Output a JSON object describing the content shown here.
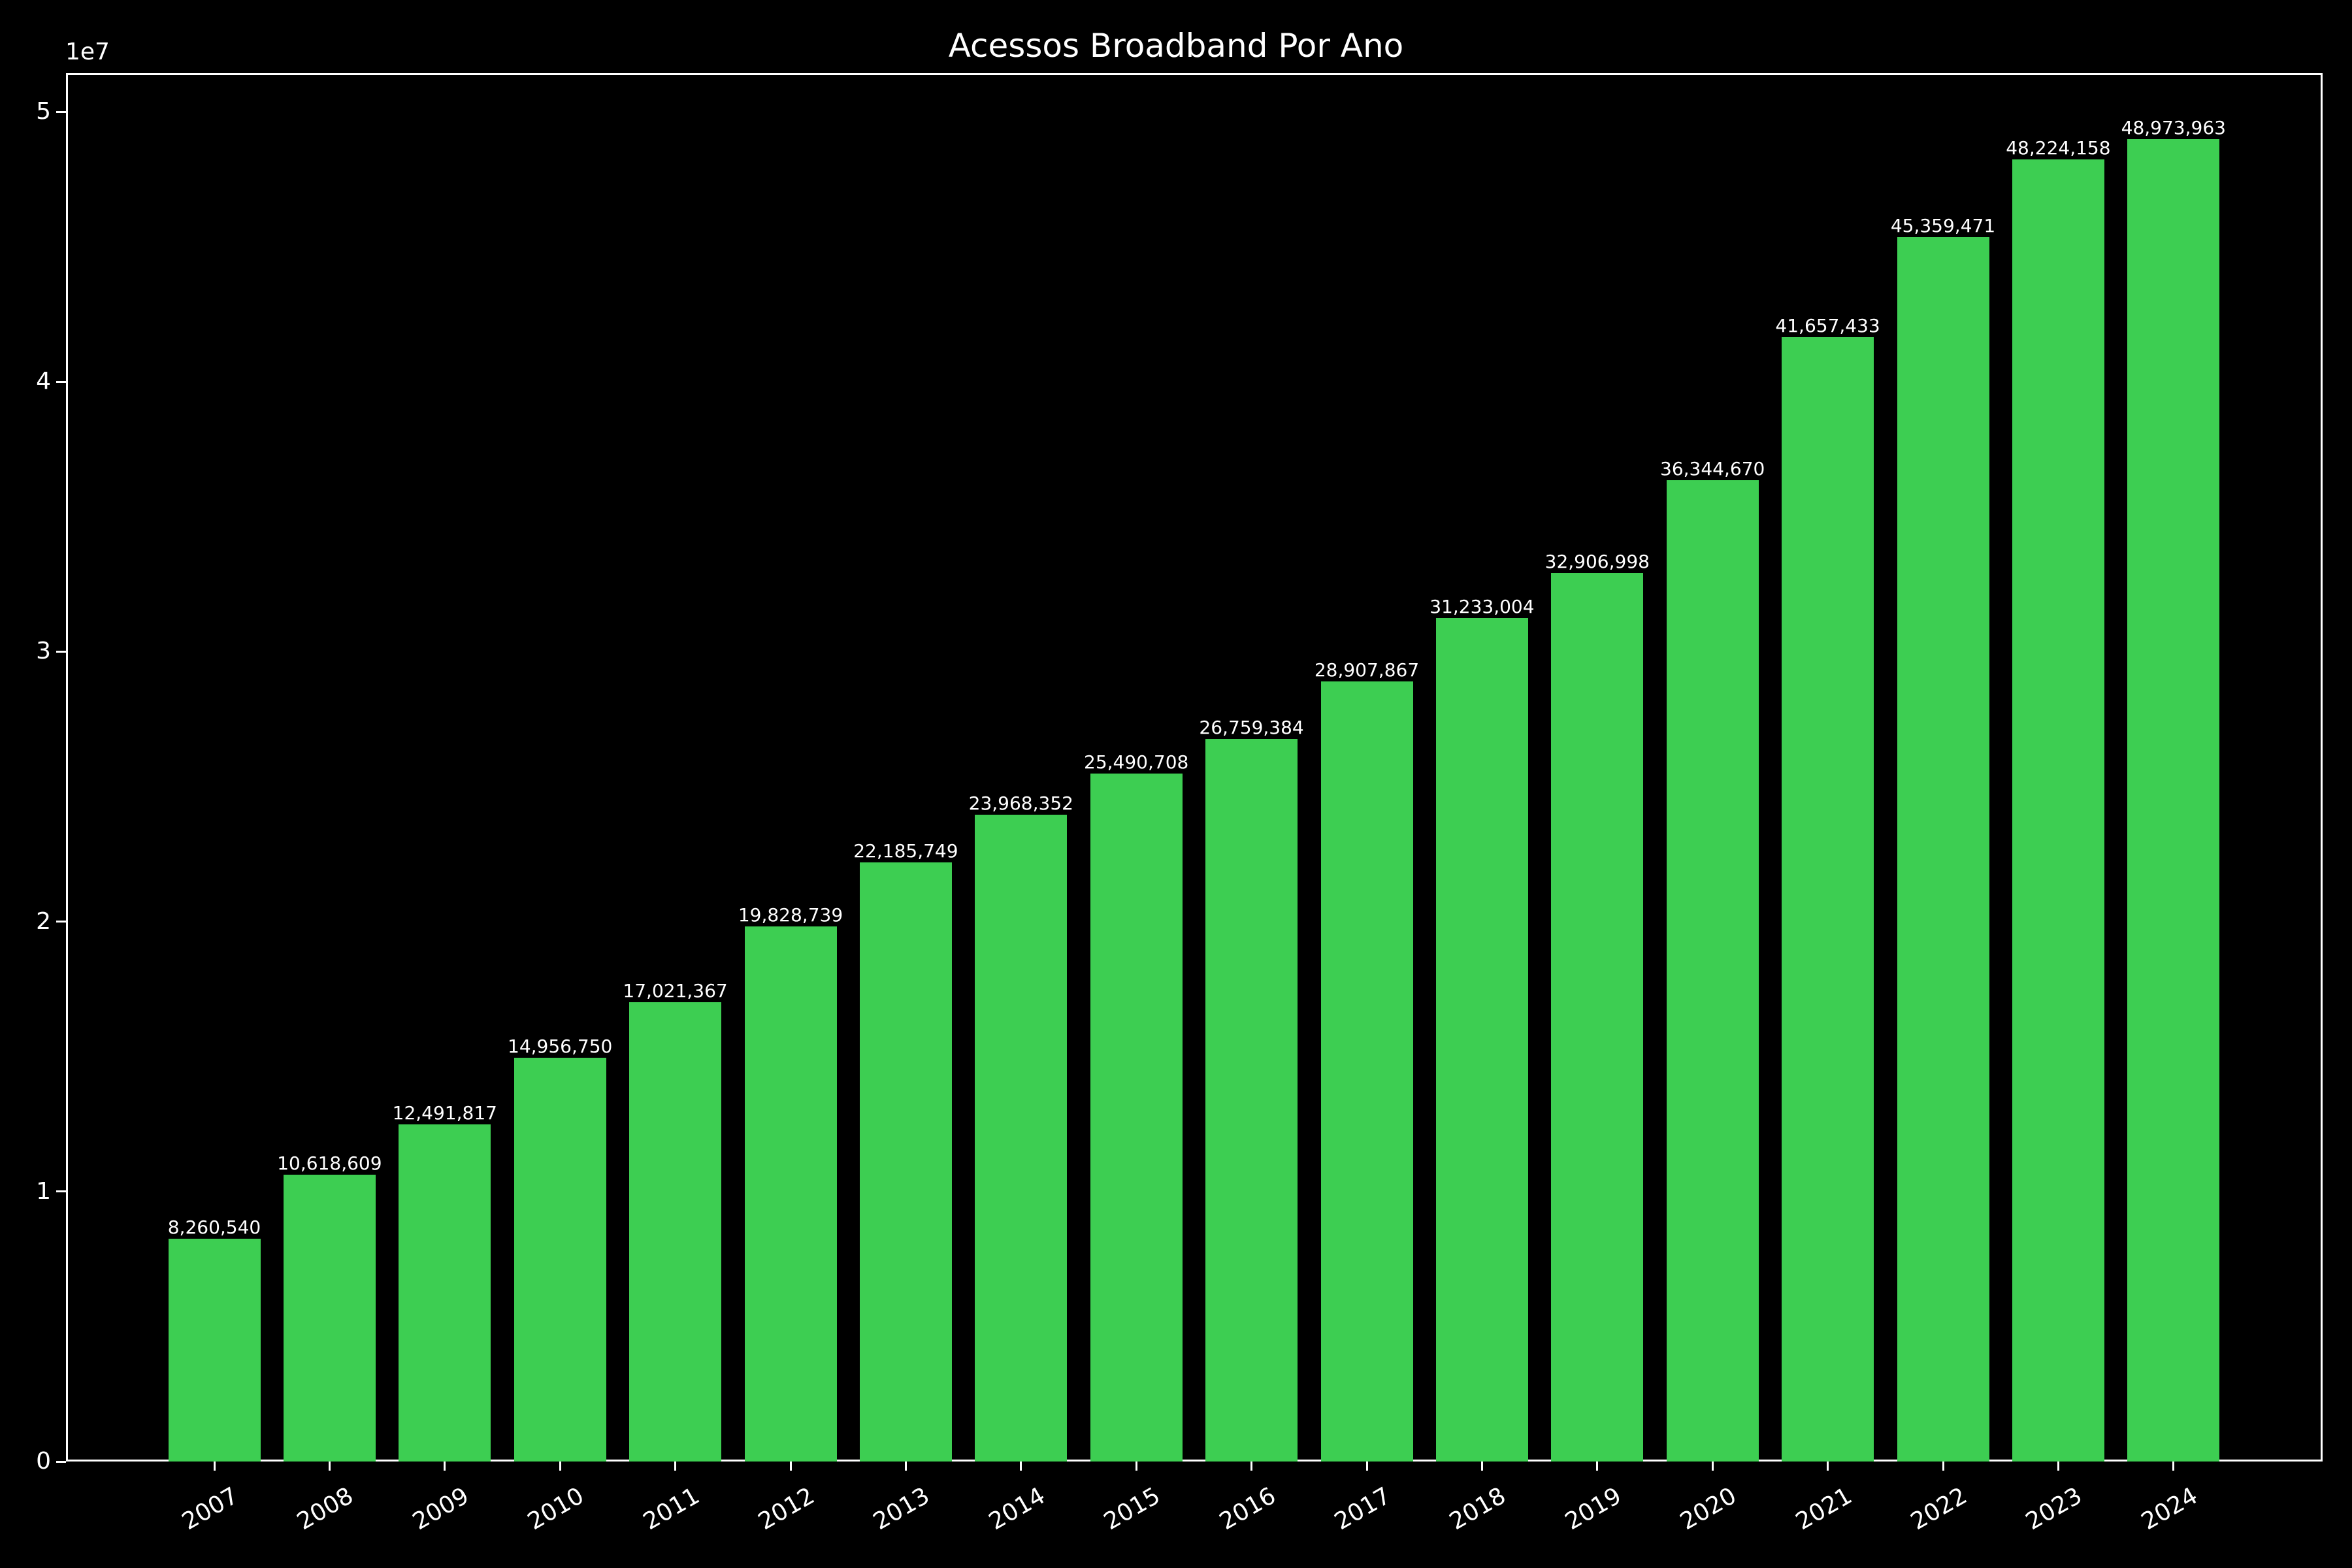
{
  "chart_data": {
    "type": "bar",
    "title": "Acessos Broadband Por Ano",
    "xlabel": "",
    "ylabel": "",
    "y_offset_label": "1e7",
    "ylim": [
      0,
      51427000
    ],
    "yticks": [
      0,
      10000000,
      20000000,
      30000000,
      40000000,
      50000000
    ],
    "ytick_labels": [
      "0",
      "1",
      "2",
      "3",
      "4",
      "5"
    ],
    "categories": [
      "2007",
      "2008",
      "2009",
      "2010",
      "2011",
      "2012",
      "2013",
      "2014",
      "2015",
      "2016",
      "2017",
      "2018",
      "2019",
      "2020",
      "2021",
      "2022",
      "2023",
      "2024"
    ],
    "values": [
      8260540,
      10618609,
      12491817,
      14956750,
      17021367,
      19828739,
      22185749,
      23968352,
      25490708,
      26759384,
      28907867,
      31233004,
      32906998,
      36344670,
      41657433,
      45359471,
      48224158,
      48973963
    ],
    "value_labels": [
      "8,260,540",
      "10,618,609",
      "12,491,817",
      "14,956,750",
      "17,021,367",
      "19,828,739",
      "22,185,749",
      "23,968,352",
      "25,490,708",
      "26,759,384",
      "28,907,867",
      "31,233,004",
      "32,906,998",
      "36,344,670",
      "41,657,433",
      "45,359,471",
      "48,224,158",
      "48,973,963"
    ],
    "xtick_rotation": 30,
    "grid": false,
    "legend": null,
    "colors": {
      "bar": "#3dce52",
      "background": "#000000",
      "text": "#ffffff",
      "axes": "#ffffff"
    }
  }
}
